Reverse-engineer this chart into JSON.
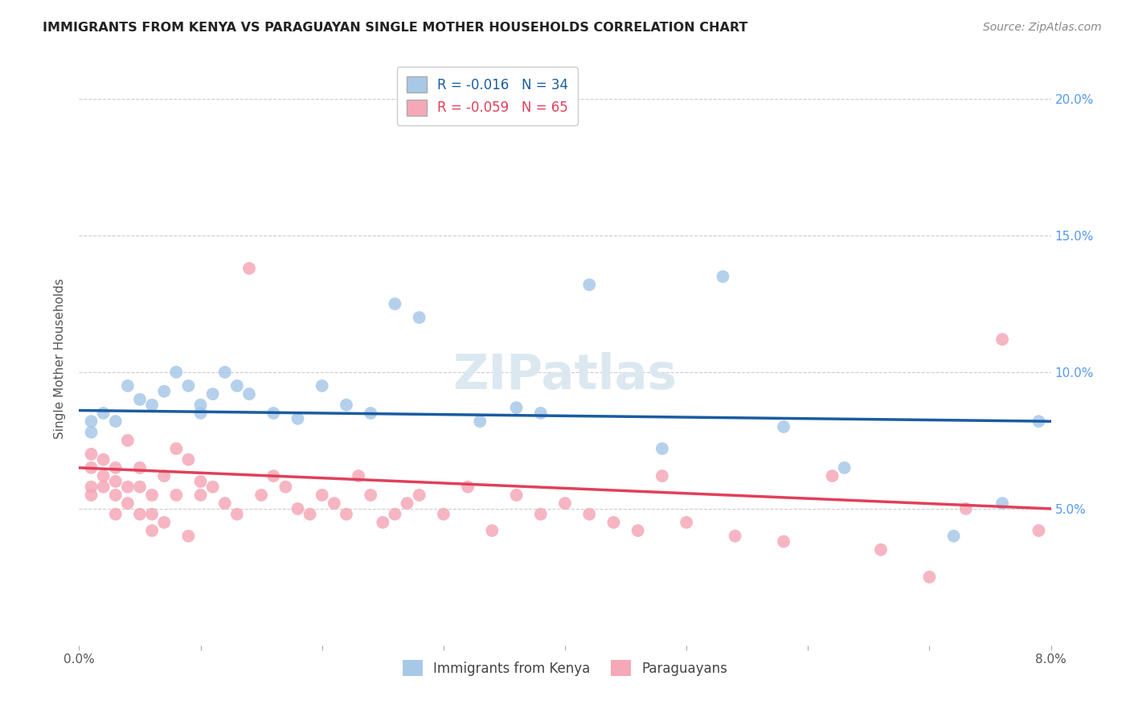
{
  "title": "IMMIGRANTS FROM KENYA VS PARAGUAYAN SINGLE MOTHER HOUSEHOLDS CORRELATION CHART",
  "source": "Source: ZipAtlas.com",
  "ylabel": "Single Mother Households",
  "x_min": 0.0,
  "x_max": 0.08,
  "y_min": 0.0,
  "y_max": 0.21,
  "y_ticks": [
    0.05,
    0.1,
    0.15,
    0.2
  ],
  "y_tick_labels": [
    "5.0%",
    "10.0%",
    "15.0%",
    "20.0%"
  ],
  "legend_entry1": "R = -0.016   N = 34",
  "legend_entry2": "R = -0.059   N = 65",
  "legend_label1": "Immigrants from Kenya",
  "legend_label2": "Paraguayans",
  "blue_color": "#a8c8e8",
  "pink_color": "#f5a8b8",
  "blue_line_color": "#1a5ca0",
  "pink_line_color": "#e0405a",
  "kenya_x": [
    0.001,
    0.001,
    0.002,
    0.003,
    0.004,
    0.005,
    0.006,
    0.007,
    0.008,
    0.009,
    0.01,
    0.01,
    0.011,
    0.012,
    0.013,
    0.014,
    0.016,
    0.018,
    0.02,
    0.022,
    0.024,
    0.026,
    0.028,
    0.033,
    0.036,
    0.038,
    0.042,
    0.048,
    0.053,
    0.058,
    0.063,
    0.072,
    0.076,
    0.079
  ],
  "kenya_y": [
    0.082,
    0.078,
    0.085,
    0.082,
    0.095,
    0.09,
    0.088,
    0.093,
    0.1,
    0.095,
    0.088,
    0.085,
    0.092,
    0.1,
    0.095,
    0.092,
    0.085,
    0.083,
    0.095,
    0.088,
    0.085,
    0.125,
    0.12,
    0.082,
    0.087,
    0.085,
    0.132,
    0.072,
    0.135,
    0.08,
    0.065,
    0.04,
    0.052,
    0.082
  ],
  "paraguay_x": [
    0.001,
    0.001,
    0.001,
    0.001,
    0.002,
    0.002,
    0.002,
    0.003,
    0.003,
    0.003,
    0.003,
    0.004,
    0.004,
    0.004,
    0.005,
    0.005,
    0.005,
    0.006,
    0.006,
    0.006,
    0.007,
    0.007,
    0.008,
    0.008,
    0.009,
    0.009,
    0.01,
    0.01,
    0.011,
    0.012,
    0.013,
    0.014,
    0.015,
    0.016,
    0.017,
    0.018,
    0.019,
    0.02,
    0.021,
    0.022,
    0.023,
    0.024,
    0.025,
    0.026,
    0.027,
    0.028,
    0.03,
    0.032,
    0.034,
    0.036,
    0.038,
    0.04,
    0.042,
    0.044,
    0.046,
    0.048,
    0.05,
    0.054,
    0.058,
    0.062,
    0.066,
    0.07,
    0.073,
    0.076,
    0.079
  ],
  "paraguay_y": [
    0.065,
    0.058,
    0.055,
    0.07,
    0.062,
    0.058,
    0.068,
    0.055,
    0.048,
    0.06,
    0.065,
    0.058,
    0.052,
    0.075,
    0.048,
    0.058,
    0.065,
    0.042,
    0.055,
    0.048,
    0.062,
    0.045,
    0.072,
    0.055,
    0.068,
    0.04,
    0.055,
    0.06,
    0.058,
    0.052,
    0.048,
    0.138,
    0.055,
    0.062,
    0.058,
    0.05,
    0.048,
    0.055,
    0.052,
    0.048,
    0.062,
    0.055,
    0.045,
    0.048,
    0.052,
    0.055,
    0.048,
    0.058,
    0.042,
    0.055,
    0.048,
    0.052,
    0.048,
    0.045,
    0.042,
    0.062,
    0.045,
    0.04,
    0.038,
    0.062,
    0.035,
    0.025,
    0.05,
    0.112,
    0.042
  ],
  "blue_line_x0": 0.0,
  "blue_line_x1": 0.08,
  "blue_line_y0": 0.086,
  "blue_line_y1": 0.082,
  "pink_line_x0": 0.0,
  "pink_line_x1": 0.08,
  "pink_line_y0": 0.065,
  "pink_line_y1": 0.05
}
